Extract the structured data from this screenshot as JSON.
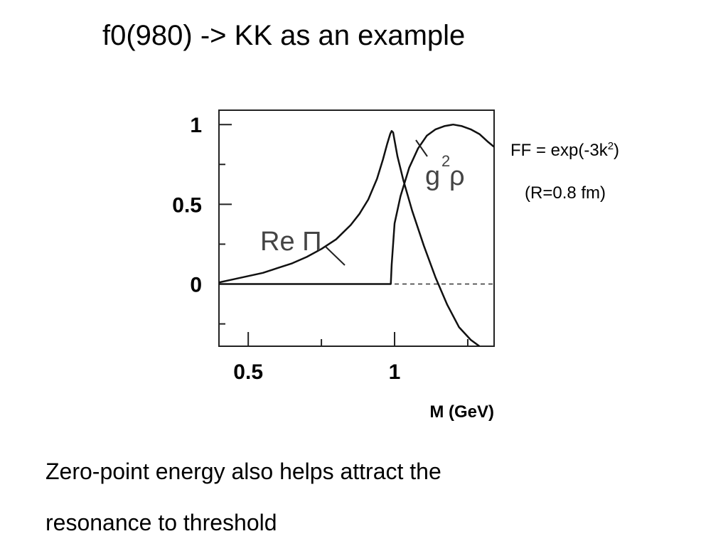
{
  "slide": {
    "title": "f0(980) -> KK as an example",
    "formula_prefix": "FF = exp(-3k",
    "formula_exponent": "2",
    "formula_suffix": ")",
    "radius_note": "(R=0.8 fm)",
    "body_line_1": "Zero-point energy also helps attract the",
    "body_line_2": "resonance to threshold"
  },
  "chart_data": {
    "type": "line",
    "title": "",
    "xlabel": "M (GeV)",
    "ylabel": "",
    "xlim": [
      0.4,
      1.34
    ],
    "ylim": [
      -0.39,
      1.09
    ],
    "x_ticks": [
      0.5,
      1
    ],
    "x_tick_labels": [
      "0.5",
      "1"
    ],
    "y_ticks": [
      0,
      0.5,
      1
    ],
    "y_tick_labels": [
      "0",
      "0.5",
      "1"
    ],
    "grid": false,
    "legend": "none",
    "series": [
      {
        "name": "Re Π",
        "label_main": "Re Π",
        "x": [
          0.4,
          0.45,
          0.5,
          0.55,
          0.6,
          0.65,
          0.7,
          0.75,
          0.8,
          0.85,
          0.88,
          0.91,
          0.94,
          0.96,
          0.975,
          0.985,
          0.99,
          0.995,
          1.0,
          1.01,
          1.03,
          1.06,
          1.1,
          1.14,
          1.18,
          1.22,
          1.26,
          1.29
        ],
        "values": [
          0.01,
          0.03,
          0.05,
          0.07,
          0.1,
          0.13,
          0.17,
          0.22,
          0.28,
          0.37,
          0.44,
          0.53,
          0.66,
          0.78,
          0.88,
          0.94,
          0.96,
          0.95,
          0.9,
          0.8,
          0.65,
          0.46,
          0.24,
          0.04,
          -0.13,
          -0.27,
          -0.35,
          -0.39
        ]
      },
      {
        "name": "g²ρ",
        "label_main": "g",
        "label_sup": "2",
        "label_tail": "ρ",
        "x": [
          0.4,
          0.5,
          0.6,
          0.7,
          0.8,
          0.9,
          0.987,
          0.99,
          1.0,
          1.02,
          1.05,
          1.08,
          1.11,
          1.14,
          1.17,
          1.2,
          1.23,
          1.26,
          1.29,
          1.32,
          1.34
        ],
        "values": [
          0.0,
          0.0,
          0.0,
          0.0,
          0.0,
          0.0,
          0.0,
          0.12,
          0.38,
          0.55,
          0.73,
          0.85,
          0.93,
          0.97,
          0.99,
          1.0,
          0.99,
          0.97,
          0.94,
          0.89,
          0.86
        ]
      }
    ],
    "reference_line": {
      "y": 0,
      "style": "dashed"
    }
  }
}
